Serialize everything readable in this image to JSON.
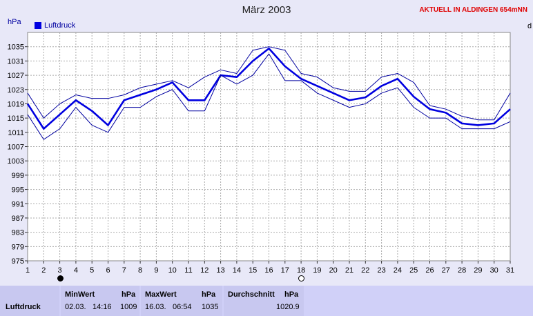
{
  "title": "März 2003",
  "station": "AKTUELL IN ALDINGEN 654mNN",
  "unit": "hPa",
  "right_cut": "d",
  "chart_data": {
    "type": "line",
    "title": "März 2003",
    "ylabel": "hPa",
    "ylim": [
      975,
      1039
    ],
    "yticks": [
      975,
      979,
      983,
      987,
      991,
      995,
      999,
      1003,
      1007,
      1011,
      1015,
      1019,
      1023,
      1027,
      1031,
      1035
    ],
    "x": [
      1,
      2,
      3,
      4,
      5,
      6,
      7,
      8,
      9,
      10,
      11,
      12,
      13,
      14,
      15,
      16,
      17,
      18,
      19,
      20,
      21,
      22,
      23,
      24,
      25,
      26,
      27,
      28,
      29,
      30,
      31
    ],
    "xlim": [
      1,
      31
    ],
    "grid": true,
    "legend_position": "top-left",
    "series": [
      {
        "name": "Luftdruck",
        "role": "mean",
        "color": "#0000e0",
        "values": [
          1019,
          1012,
          1016,
          1020,
          1017,
          1013,
          1020,
          1021.5,
          1023,
          1025,
          1020,
          1020,
          1027,
          1026.5,
          1031,
          1034.5,
          1029.5,
          1026,
          1024,
          1022,
          1020,
          1020.8,
          1024,
          1026,
          1021,
          1017.5,
          1016.5,
          1013.5,
          1013,
          1013.5,
          1017.5
        ]
      },
      {
        "role": "max",
        "color": "#0000a0",
        "values": [
          1022,
          1015,
          1019,
          1021.5,
          1020.5,
          1020.5,
          1021.5,
          1023.5,
          1024.5,
          1025.5,
          1023.5,
          1026.5,
          1028.5,
          1027.5,
          1034,
          1035,
          1034,
          1027.5,
          1026.5,
          1023.5,
          1022.5,
          1022.5,
          1026.5,
          1027.5,
          1025,
          1018.5,
          1017.5,
          1015.5,
          1014.5,
          1014.5,
          1022
        ]
      },
      {
        "role": "min",
        "color": "#0000a0",
        "values": [
          1016,
          1009,
          1012,
          1018,
          1013,
          1011,
          1018,
          1018,
          1021,
          1023,
          1017,
          1017,
          1027,
          1024.5,
          1027,
          1033,
          1025.5,
          1025.5,
          1022,
          1020,
          1018,
          1019,
          1022,
          1023.5,
          1018,
          1015,
          1015,
          1012,
          1012,
          1012,
          1014
        ]
      }
    ],
    "moon_phases": [
      {
        "day": 3,
        "phase": "new"
      },
      {
        "day": 18,
        "phase": "full"
      }
    ]
  },
  "legend": {
    "label": "Luftdruck"
  },
  "stats": {
    "row_label": "Luftdruck",
    "min": {
      "header": "MinWert",
      "unit": "hPa",
      "date": "02.03.",
      "time": "14:16",
      "value": "1009"
    },
    "max": {
      "header": "MaxWert",
      "unit": "hPa",
      "date": "16.03.",
      "time": "06:54",
      "value": "1035"
    },
    "avg": {
      "header": "Durchschnitt",
      "unit": "hPa",
      "value": "1020.9"
    }
  }
}
